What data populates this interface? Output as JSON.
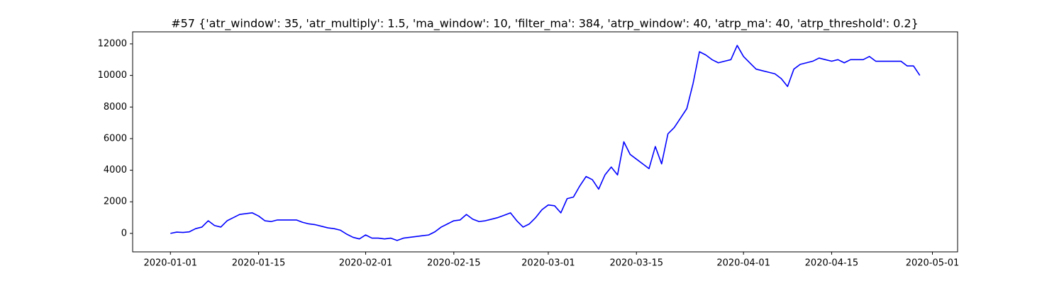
{
  "chart_data": {
    "type": "line",
    "title": "#57 {'atr_window': 35, 'atr_multiply': 1.5, 'ma_window': 10, 'filter_ma': 384, 'atrp_window': 40, 'atrp_ma': 40, 'atrp_threshold': 0.2}",
    "x": [
      "2020-01-01",
      "2020-01-02",
      "2020-01-03",
      "2020-01-04",
      "2020-01-05",
      "2020-01-06",
      "2020-01-07",
      "2020-01-08",
      "2020-01-09",
      "2020-01-10",
      "2020-01-11",
      "2020-01-12",
      "2020-01-13",
      "2020-01-14",
      "2020-01-15",
      "2020-01-16",
      "2020-01-17",
      "2020-01-18",
      "2020-01-19",
      "2020-01-20",
      "2020-01-21",
      "2020-01-22",
      "2020-01-23",
      "2020-01-24",
      "2020-01-25",
      "2020-01-26",
      "2020-01-27",
      "2020-01-28",
      "2020-01-29",
      "2020-01-30",
      "2020-01-31",
      "2020-02-01",
      "2020-02-02",
      "2020-02-03",
      "2020-02-04",
      "2020-02-05",
      "2020-02-06",
      "2020-02-07",
      "2020-02-08",
      "2020-02-09",
      "2020-02-10",
      "2020-02-11",
      "2020-02-12",
      "2020-02-13",
      "2020-02-14",
      "2020-02-15",
      "2020-02-16",
      "2020-02-17",
      "2020-02-18",
      "2020-02-19",
      "2020-02-20",
      "2020-02-21",
      "2020-02-22",
      "2020-02-23",
      "2020-02-24",
      "2020-02-25",
      "2020-02-26",
      "2020-02-27",
      "2020-02-28",
      "2020-02-29",
      "2020-03-01",
      "2020-03-02",
      "2020-03-03",
      "2020-03-04",
      "2020-03-05",
      "2020-03-06",
      "2020-03-07",
      "2020-03-08",
      "2020-03-09",
      "2020-03-10",
      "2020-03-11",
      "2020-03-12",
      "2020-03-13",
      "2020-03-14",
      "2020-03-15",
      "2020-03-16",
      "2020-03-17",
      "2020-03-18",
      "2020-03-19",
      "2020-03-20",
      "2020-03-21",
      "2020-03-22",
      "2020-03-23",
      "2020-03-24",
      "2020-03-25",
      "2020-03-26",
      "2020-03-27",
      "2020-03-28",
      "2020-03-29",
      "2020-03-30",
      "2020-03-31",
      "2020-04-01",
      "2020-04-02",
      "2020-04-03",
      "2020-04-04",
      "2020-04-05",
      "2020-04-06",
      "2020-04-07",
      "2020-04-08",
      "2020-04-09",
      "2020-04-10",
      "2020-04-11",
      "2020-04-12",
      "2020-04-13",
      "2020-04-14",
      "2020-04-15",
      "2020-04-16",
      "2020-04-17",
      "2020-04-18",
      "2020-04-19",
      "2020-04-20",
      "2020-04-21",
      "2020-04-22",
      "2020-04-23",
      "2020-04-24",
      "2020-04-25",
      "2020-04-26",
      "2020-04-27",
      "2020-04-28",
      "2020-04-29"
    ],
    "series": [
      {
        "color": "#0000ff",
        "values": [
          0,
          80,
          60,
          100,
          300,
          400,
          800,
          500,
          400,
          800,
          1000,
          1200,
          1250,
          1300,
          1100,
          800,
          750,
          850,
          850,
          850,
          850,
          700,
          600,
          550,
          450,
          350,
          300,
          200,
          -50,
          -250,
          -350,
          -100,
          -300,
          -300,
          -350,
          -300,
          -450,
          -300,
          -250,
          -200,
          -150,
          -100,
          100,
          400,
          600,
          800,
          850,
          1200,
          900,
          750,
          800,
          900,
          1000,
          1150,
          1300,
          800,
          400,
          600,
          1000,
          1500,
          1800,
          1750,
          1300,
          2200,
          2300,
          3000,
          3600,
          3400,
          2800,
          3700,
          4200,
          3700,
          5800,
          5000,
          4700,
          4400,
          4100,
          5500,
          4400,
          6300,
          6700,
          7300,
          7900,
          9500,
          11500,
          11300,
          11000,
          10800,
          10900,
          11000,
          11900,
          11200,
          10800,
          10400,
          10300,
          10200,
          10100,
          9800,
          9300,
          10400,
          10700,
          10800,
          10900,
          11100,
          11000,
          10900,
          11000,
          10800,
          11000,
          11000,
          11000,
          11200,
          10900,
          10900,
          10900,
          10900,
          10900,
          10600,
          10600,
          10000
        ]
      }
    ],
    "xlim": [
      "2019-12-26",
      "2020-05-05"
    ],
    "xticks": [
      "2020-01-01",
      "2020-01-15",
      "2020-02-01",
      "2020-02-15",
      "2020-03-01",
      "2020-03-15",
      "2020-04-01",
      "2020-04-15",
      "2020-05-01"
    ],
    "ylim": [
      -1170,
      12760
    ],
    "yticks": [
      0,
      2000,
      4000,
      6000,
      8000,
      10000,
      12000
    ]
  }
}
